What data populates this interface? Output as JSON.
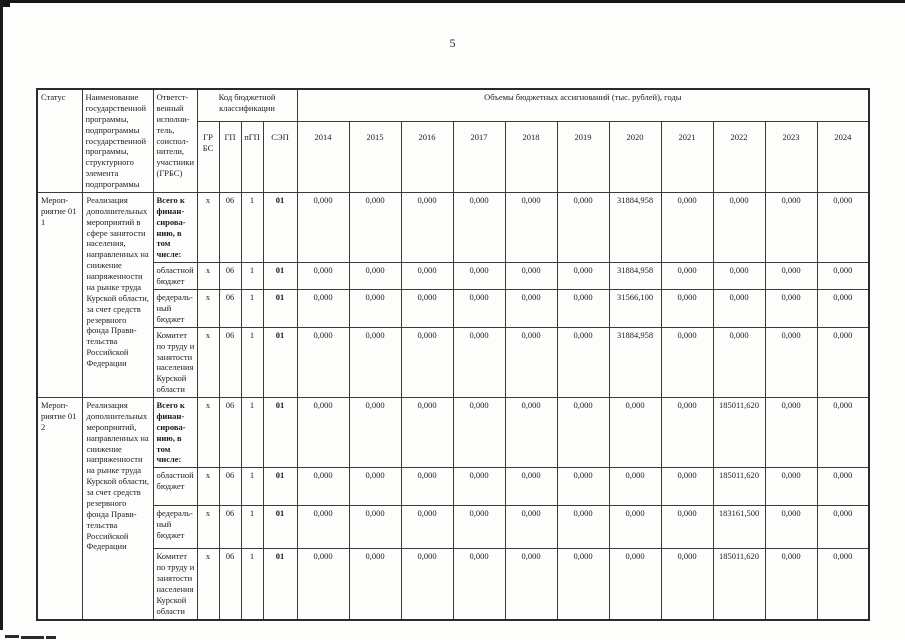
{
  "page": {
    "number": "5"
  },
  "table": {
    "header": {
      "status": "Статус",
      "name": "Наименование государственной программы, подпрограммы государственной программы, структурного элемента подпрограммы",
      "executor": "Ответст-венный исполни-тель, соиспол-нители, участники (ГРБС)",
      "budget_code": "Код бюджетной классификации",
      "code_cols": [
        "ГР БС",
        "ГП",
        "пГП",
        "СЭП"
      ],
      "volumes": "Объемы бюджетных ассигнований  (тыс. рублей), годы",
      "years": [
        "2014",
        "2015",
        "2016",
        "2017",
        "2018",
        "2019",
        "2020",
        "2021",
        "2022",
        "2023",
        "2024"
      ]
    },
    "blocks": [
      {
        "status": "Мероп-риятие 01 1",
        "name": "Реализация дополнительных мероприятий в сфере занятости населения, направленных на снижение напряженности на рынке труда Курской области, за счет средств резервного фонда Прави-тельства Российской Федерации",
        "rows": [
          {
            "executor": "Всего к финан-сирова-нию, в том числе:",
            "bold": true,
            "code": [
              "х",
              "06",
              "1",
              "01"
            ],
            "values": [
              "0,000",
              "0,000",
              "0,000",
              "0,000",
              "0,000",
              "0,000",
              "31884,958",
              "0,000",
              "0,000",
              "0,000",
              "0,000"
            ]
          },
          {
            "executor": "областной бюджет",
            "bold": false,
            "code": [
              "х",
              "06",
              "1",
              "01"
            ],
            "values": [
              "0,000",
              "0,000",
              "0,000",
              "0,000",
              "0,000",
              "0,000",
              "31884,958",
              "0,000",
              "0,000",
              "0,000",
              "0,000"
            ]
          },
          {
            "executor": "федераль-ный бюджет",
            "bold": false,
            "code": [
              "х",
              "06",
              "1",
              "01"
            ],
            "values": [
              "0,000",
              "0,000",
              "0,000",
              "0,000",
              "0,000",
              "0,000",
              "31566,100",
              "0,000",
              "0,000",
              "0,000",
              "0,000"
            ]
          },
          {
            "executor": "Комитет по труду и занятости населения Курской области",
            "bold": false,
            "code": [
              "х",
              "06",
              "1",
              "01"
            ],
            "values": [
              "0,000",
              "0,000",
              "0,000",
              "0,000",
              "0,000",
              "0,000",
              "31884,958",
              "0,000",
              "0,000",
              "0,000",
              "0,000"
            ]
          }
        ]
      },
      {
        "status": "Мероп-риятие 01 2",
        "name": "Реализация дополнительных мероприятий, направленных на снижение напряженности на рынке труда Курской области, за счет средств резервного фонда Прави-тельства Российской Федерации",
        "rows": [
          {
            "executor": "Всего к финан-сирова-нию, в том числе:",
            "bold": true,
            "code": [
              "х",
              "06",
              "1",
              "01"
            ],
            "values": [
              "0,000",
              "0,000",
              "0,000",
              "0,000",
              "0,000",
              "0,000",
              "0,000",
              "0,000",
              "185011,620",
              "0,000",
              "0,000"
            ]
          },
          {
            "executor": "областной бюджет",
            "bold": false,
            "code": [
              "х",
              "06",
              "1",
              "01"
            ],
            "values": [
              "0,000",
              "0,000",
              "0,000",
              "0,000",
              "0,000",
              "0,000",
              "0,000",
              "0,000",
              "185011,620",
              "0,000",
              "0,000"
            ]
          },
          {
            "executor": "федераль-ный бюджет",
            "bold": false,
            "code": [
              "х",
              "06",
              "1",
              "01"
            ],
            "values": [
              "0,000",
              "0,000",
              "0,000",
              "0,000",
              "0,000",
              "0,000",
              "0,000",
              "0,000",
              "183161,500",
              "0,000",
              "0,000"
            ]
          },
          {
            "executor": "Комитет по труду и занятости населения Курской области",
            "bold": false,
            "code": [
              "х",
              "06",
              "1",
              "01"
            ],
            "values": [
              "0,000",
              "0,000",
              "0,000",
              "0,000",
              "0,000",
              "0,000",
              "0,000",
              "0,000",
              "185011,620",
              "0,000",
              "0,000"
            ]
          }
        ]
      }
    ]
  }
}
